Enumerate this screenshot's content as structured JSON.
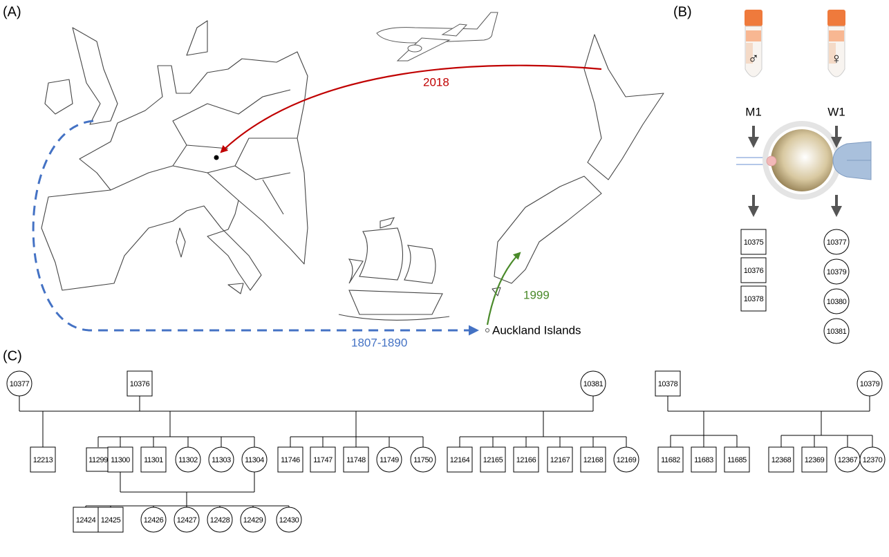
{
  "panels": {
    "a": {
      "label": "(A)",
      "route_europe": "2018",
      "route_nz": "1999",
      "route_historic": "1807-1890",
      "place": "Auckland Islands"
    },
    "b": {
      "label": "(B)",
      "donors": [
        {
          "symbol": "♂",
          "name": "M1",
          "shape": "square",
          "offspring": [
            "10375",
            "10376",
            "10378"
          ]
        },
        {
          "symbol": "♀",
          "name": "W1",
          "shape": "circle",
          "offspring": [
            "10377",
            "10379",
            "10380",
            "10381"
          ]
        }
      ]
    },
    "c": {
      "label": "(C)",
      "generations": [
        [
          {
            "id": "10377",
            "shape": "circle"
          },
          {
            "id": "10376",
            "shape": "square"
          },
          {
            "id": "10381",
            "shape": "circle"
          },
          {
            "id": "10378",
            "shape": "square"
          },
          {
            "id": "10379",
            "shape": "circle"
          }
        ],
        [
          {
            "id": "12213",
            "shape": "square"
          },
          {
            "id": "11299",
            "shape": "square"
          },
          {
            "id": "11300",
            "shape": "square"
          },
          {
            "id": "11301",
            "shape": "square"
          },
          {
            "id": "11302",
            "shape": "circle"
          },
          {
            "id": "11303",
            "shape": "circle"
          },
          {
            "id": "11304",
            "shape": "circle"
          },
          {
            "id": "11746",
            "shape": "square"
          },
          {
            "id": "11747",
            "shape": "square"
          },
          {
            "id": "11748",
            "shape": "square"
          },
          {
            "id": "11749",
            "shape": "circle"
          },
          {
            "id": "11750",
            "shape": "circle"
          },
          {
            "id": "12164",
            "shape": "square"
          },
          {
            "id": "12165",
            "shape": "square"
          },
          {
            "id": "12166",
            "shape": "square"
          },
          {
            "id": "12167",
            "shape": "square"
          },
          {
            "id": "12168",
            "shape": "square"
          },
          {
            "id": "12169",
            "shape": "circle"
          },
          {
            "id": "11682",
            "shape": "square"
          },
          {
            "id": "11683",
            "shape": "square"
          },
          {
            "id": "11685",
            "shape": "square"
          },
          {
            "id": "12368",
            "shape": "square"
          },
          {
            "id": "12369",
            "shape": "square"
          },
          {
            "id": "12367",
            "shape": "circle"
          },
          {
            "id": "12370",
            "shape": "circle"
          }
        ],
        [
          {
            "id": "12424",
            "shape": "square"
          },
          {
            "id": "12425",
            "shape": "square"
          },
          {
            "id": "12426",
            "shape": "circle"
          },
          {
            "id": "12427",
            "shape": "circle"
          },
          {
            "id": "12428",
            "shape": "circle"
          },
          {
            "id": "12429",
            "shape": "circle"
          },
          {
            "id": "12430",
            "shape": "circle"
          }
        ]
      ]
    }
  }
}
